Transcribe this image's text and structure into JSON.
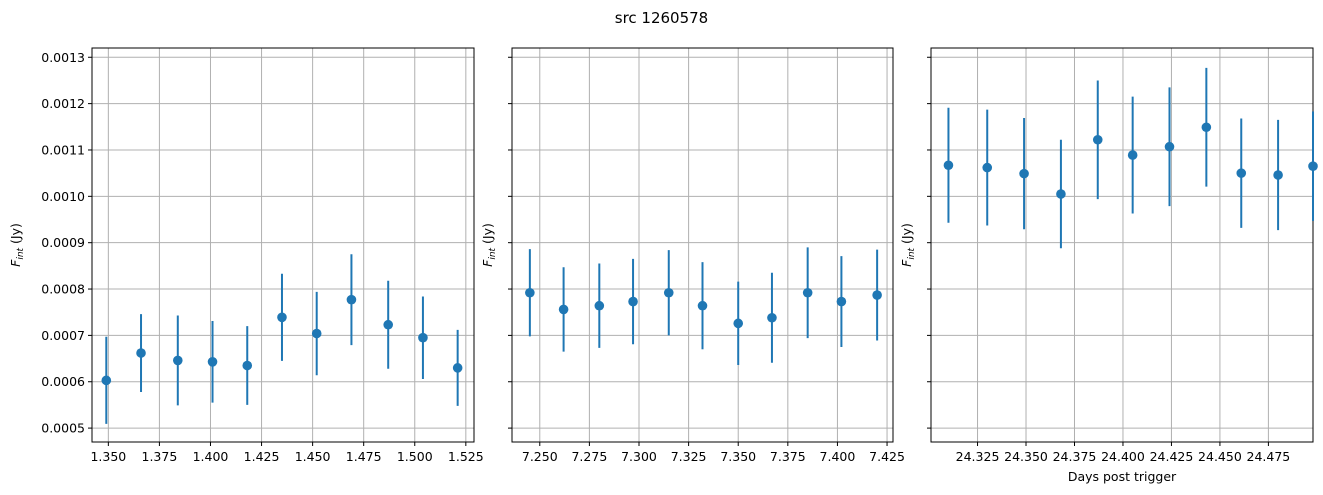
{
  "figure": {
    "title": "src 1260578"
  },
  "chart_data": [
    {
      "type": "scatter",
      "title": "",
      "xlabel": "",
      "ylabel_main": "F",
      "ylabel_sub": "int",
      "ylabel_unit": " (Jy)",
      "xlim": [
        1.342,
        1.529
      ],
      "ylim": [
        0.00047,
        0.00132
      ],
      "xticks": [
        1.35,
        1.375,
        1.4,
        1.425,
        1.45,
        1.475,
        1.5,
        1.525
      ],
      "xtick_labels": [
        "1.350",
        "1.375",
        "1.400",
        "1.425",
        "1.450",
        "1.475",
        "1.500",
        "1.525"
      ],
      "yticks": [
        0.0005,
        0.0006,
        0.0007,
        0.0008,
        0.0009,
        0.001,
        0.0011,
        0.0012,
        0.0013
      ],
      "ytick_labels": [
        "0.0005",
        "0.0006",
        "0.0007",
        "0.0008",
        "0.0009",
        "0.0010",
        "0.0011",
        "0.0012",
        "0.0013"
      ],
      "grid": true,
      "points": [
        {
          "x": 1.349,
          "y": 0.000603,
          "yerr": 9.4e-05
        },
        {
          "x": 1.366,
          "y": 0.000662,
          "yerr": 8.4e-05
        },
        {
          "x": 1.384,
          "y": 0.000646,
          "yerr": 9.7e-05
        },
        {
          "x": 1.401,
          "y": 0.000643,
          "yerr": 8.8e-05
        },
        {
          "x": 1.418,
          "y": 0.000635,
          "yerr": 8.5e-05
        },
        {
          "x": 1.435,
          "y": 0.000739,
          "yerr": 9.4e-05
        },
        {
          "x": 1.452,
          "y": 0.000704,
          "yerr": 9e-05
        },
        {
          "x": 1.469,
          "y": 0.000777,
          "yerr": 9.8e-05
        },
        {
          "x": 1.487,
          "y": 0.000723,
          "yerr": 9.5e-05
        },
        {
          "x": 1.504,
          "y": 0.000695,
          "yerr": 8.9e-05
        },
        {
          "x": 1.521,
          "y": 0.00063,
          "yerr": 8.2e-05
        }
      ]
    },
    {
      "type": "scatter",
      "title": "",
      "xlabel": "",
      "ylabel_main": "F",
      "ylabel_sub": "int",
      "ylabel_unit": " (Jy)",
      "xlim": [
        7.236,
        7.428
      ],
      "ylim": [
        0.00047,
        0.00132
      ],
      "xticks": [
        7.25,
        7.275,
        7.3,
        7.325,
        7.35,
        7.375,
        7.4,
        7.425
      ],
      "xtick_labels": [
        "7.250",
        "7.275",
        "7.300",
        "7.325",
        "7.350",
        "7.375",
        "7.400",
        "7.425"
      ],
      "yticks": [
        0.0005,
        0.0006,
        0.0007,
        0.0008,
        0.0009,
        0.001,
        0.0011,
        0.0012,
        0.0013
      ],
      "ytick_labels": [
        "",
        "",
        "",
        "",
        "",
        "",
        "",
        "",
        ""
      ],
      "grid": true,
      "points": [
        {
          "x": 7.245,
          "y": 0.000792,
          "yerr": 9.4e-05
        },
        {
          "x": 7.262,
          "y": 0.000756,
          "yerr": 9.1e-05
        },
        {
          "x": 7.28,
          "y": 0.000764,
          "yerr": 9.1e-05
        },
        {
          "x": 7.297,
          "y": 0.000773,
          "yerr": 9.2e-05
        },
        {
          "x": 7.315,
          "y": 0.000792,
          "yerr": 9.2e-05
        },
        {
          "x": 7.332,
          "y": 0.000764,
          "yerr": 9.4e-05
        },
        {
          "x": 7.35,
          "y": 0.000726,
          "yerr": 9e-05
        },
        {
          "x": 7.367,
          "y": 0.000738,
          "yerr": 9.7e-05
        },
        {
          "x": 7.385,
          "y": 0.000792,
          "yerr": 9.8e-05
        },
        {
          "x": 7.402,
          "y": 0.000773,
          "yerr": 9.8e-05
        },
        {
          "x": 7.42,
          "y": 0.000787,
          "yerr": 9.8e-05
        }
      ]
    },
    {
      "type": "scatter",
      "title": "",
      "xlabel": "Days post trigger",
      "ylabel_main": "F",
      "ylabel_sub": "int",
      "ylabel_unit": " (Jy)",
      "xlim": [
        24.301,
        24.498
      ],
      "ylim": [
        0.00047,
        0.00132
      ],
      "xticks": [
        24.325,
        24.35,
        24.375,
        24.4,
        24.425,
        24.45,
        24.475
      ],
      "xtick_labels": [
        "24.325",
        "24.350",
        "24.375",
        "24.400",
        "24.425",
        "24.450",
        "24.475"
      ],
      "yticks": [
        0.0005,
        0.0006,
        0.0007,
        0.0008,
        0.0009,
        0.001,
        0.0011,
        0.0012,
        0.0013
      ],
      "ytick_labels": [
        "",
        "",
        "",
        "",
        "",
        "",
        "",
        "",
        ""
      ],
      "grid": true,
      "points": [
        {
          "x": 24.31,
          "y": 0.001067,
          "yerr": 0.000124
        },
        {
          "x": 24.33,
          "y": 0.001062,
          "yerr": 0.000125
        },
        {
          "x": 24.349,
          "y": 0.001049,
          "yerr": 0.00012
        },
        {
          "x": 24.368,
          "y": 0.001005,
          "yerr": 0.000117
        },
        {
          "x": 24.387,
          "y": 0.001122,
          "yerr": 0.000128
        },
        {
          "x": 24.405,
          "y": 0.001089,
          "yerr": 0.000126
        },
        {
          "x": 24.424,
          "y": 0.001107,
          "yerr": 0.000128
        },
        {
          "x": 24.443,
          "y": 0.001149,
          "yerr": 0.000128
        },
        {
          "x": 24.461,
          "y": 0.00105,
          "yerr": 0.000118
        },
        {
          "x": 24.48,
          "y": 0.001046,
          "yerr": 0.000119
        },
        {
          "x": 24.498,
          "y": 0.001065,
          "yerr": 0.000118
        }
      ]
    }
  ]
}
